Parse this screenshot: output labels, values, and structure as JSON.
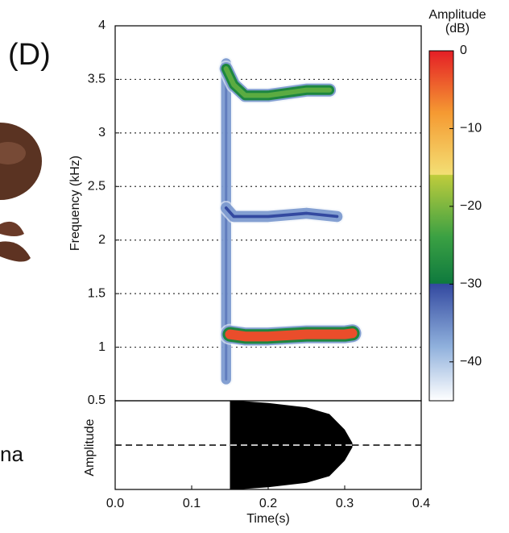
{
  "panel_label": "(D)",
  "side_text": "na",
  "chart_data": {
    "type": "spectrogram",
    "y_label": "Frequency (kHz)",
    "x_label": "Time(s)",
    "wave_label": "Amplitude",
    "colorbar_label": "Amplitude (dB)",
    "xlim": [
      0,
      0.4
    ],
    "xticks": [
      {
        "value": 0,
        "label": "0.0"
      },
      0.1,
      0.2,
      0.3,
      0.4
    ],
    "ylim": [
      0.5,
      4
    ],
    "yticks": [
      4,
      3.5,
      3,
      2.5,
      2,
      1.5,
      1,
      0.5
    ],
    "grid": true,
    "clim": [
      -45,
      0
    ],
    "cticks": [
      0,
      {
        "value": -10,
        "label": "−10"
      },
      {
        "value": -20,
        "label": "−20"
      },
      {
        "value": -30,
        "label": "−30"
      },
      {
        "value": -40,
        "label": "−40"
      }
    ],
    "colormap": [
      {
        "value": 0,
        "color": "#e41e26"
      },
      {
        "value": -8,
        "color": "#f59a32"
      },
      {
        "value": -15.9,
        "color": "#f3df74"
      },
      {
        "value": -16,
        "color": "#bfcc3c"
      },
      {
        "value": -24,
        "color": "#3aa043"
      },
      {
        "value": -29.9,
        "color": "#0f7a3e"
      },
      {
        "value": -30,
        "color": "#3349a0"
      },
      {
        "value": -38,
        "color": "#8fb0dc"
      },
      {
        "value": -45,
        "color": "#ffffff"
      }
    ],
    "bands": [
      {
        "x": [
          0.145,
          0.145
        ],
        "y": [
          0.7,
          3.65
        ],
        "peak_db": -34
      },
      {
        "x": [
          0.15,
          0.17,
          0.2,
          0.25,
          0.28,
          0.3,
          0.31
        ],
        "y": [
          1.12,
          1.1,
          1.1,
          1.12,
          1.12,
          1.12,
          1.13
        ],
        "peak_db": -3
      },
      {
        "x": [
          0.145,
          0.155,
          0.2,
          0.25,
          0.29
        ],
        "y": [
          2.3,
          2.22,
          2.22,
          2.25,
          2.22
        ],
        "peak_db": -30
      },
      {
        "x": [
          0.145,
          0.155,
          0.17,
          0.2,
          0.25,
          0.28
        ],
        "y": [
          3.6,
          3.45,
          3.35,
          3.35,
          3.4,
          3.4
        ],
        "peak_db": -22
      }
    ],
    "wave": {
      "x": [
        0.15,
        0.16,
        0.2,
        0.25,
        0.28,
        0.3,
        0.31
      ],
      "values": [
        1,
        1,
        0.95,
        0.85,
        0.7,
        0.35,
        0.05
      ],
      "ylim": [
        -1,
        1
      ]
    }
  }
}
